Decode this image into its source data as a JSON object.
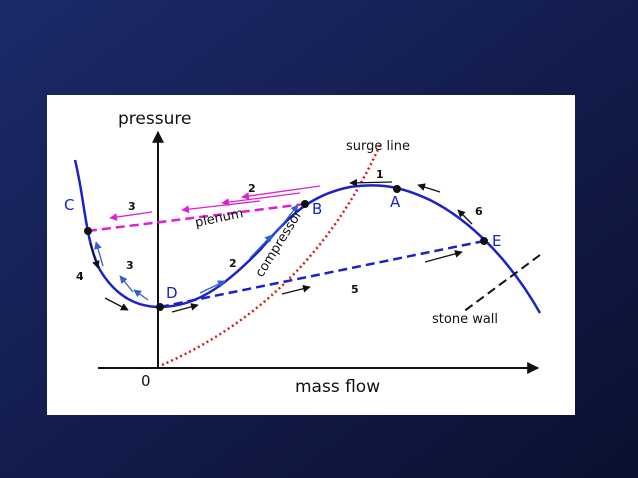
{
  "axes": {
    "y_label": "pressure",
    "x_label": "mass flow",
    "origin": "0"
  },
  "curves": {
    "surge_line": "surge line",
    "plenum": "plenum",
    "compressor": "compressor",
    "stone_wall": "stone wall"
  },
  "points": [
    "A",
    "B",
    "C",
    "D",
    "E"
  ],
  "steps": [
    "1",
    "2",
    "3",
    "6",
    "3",
    "4",
    "2",
    "5"
  ]
}
